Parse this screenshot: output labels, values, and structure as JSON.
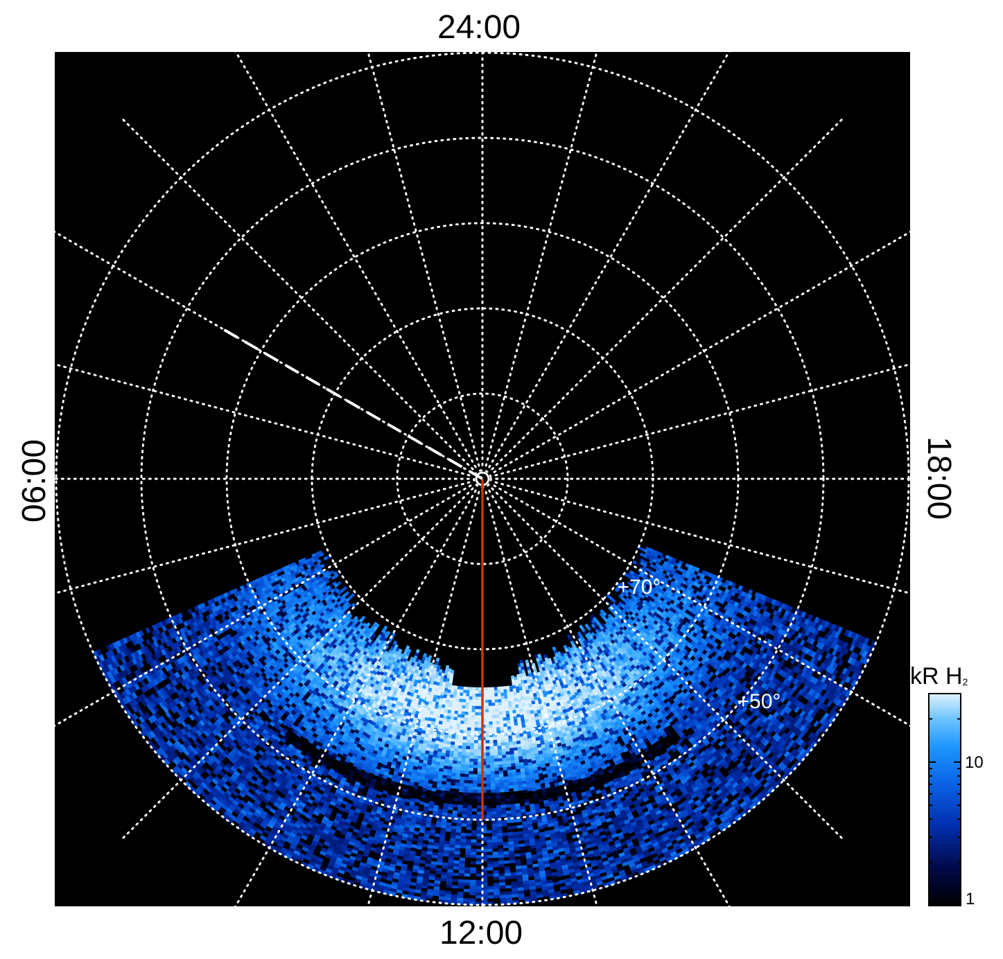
{
  "chart_data": {
    "type": "heatmap",
    "projection": "polar",
    "title": "",
    "local_time_labels": {
      "top": "24:00",
      "bottom": "12:00",
      "left": "06:00",
      "right": "18:00"
    },
    "latitude_labels": [
      "+70°",
      "+50°"
    ],
    "latitude_circles_deg": [
      89,
      80,
      70,
      60,
      50,
      40
    ],
    "local_time_meridians_hours": [
      0,
      1,
      2,
      3,
      4,
      5,
      6,
      7,
      8,
      9,
      10,
      11,
      12,
      13,
      14,
      15,
      16,
      17,
      18,
      19,
      20,
      21,
      22,
      23
    ],
    "colorbar": {
      "label_main": "kR H",
      "label_sub": "2",
      "scale": "log",
      "range": [
        1,
        30
      ],
      "ticks": [
        {
          "value": 10,
          "label": "10"
        },
        {
          "value": 1,
          "label": "1"
        }
      ],
      "colormap": [
        "#000000",
        "#000a4a",
        "#0030b0",
        "#0a64e6",
        "#1e96ff",
        "#6cc4ff",
        "#dff1ff"
      ]
    },
    "auroral_oval": {
      "peak_brightness_kR": 25,
      "center_local_time_h": 12,
      "center_colatitude_deg": 23,
      "local_time_range_h": [
        8.5,
        15.5
      ],
      "description_values": "bright diffuse emission on dayside, noisy background elsewhere in observed region"
    },
    "overlay_lines": [
      {
        "style": "solid",
        "color": "#cc3300",
        "local_time_h": 12,
        "colatitude_range_deg": [
          0,
          40
        ]
      },
      {
        "style": "dashed",
        "color": "#ffffff",
        "local_time_h": 4,
        "colatitude_range_deg": [
          0,
          35
        ]
      }
    ],
    "colors": {
      "background": "#000000",
      "grid": "#ffffff",
      "page": "#ffffff"
    }
  }
}
